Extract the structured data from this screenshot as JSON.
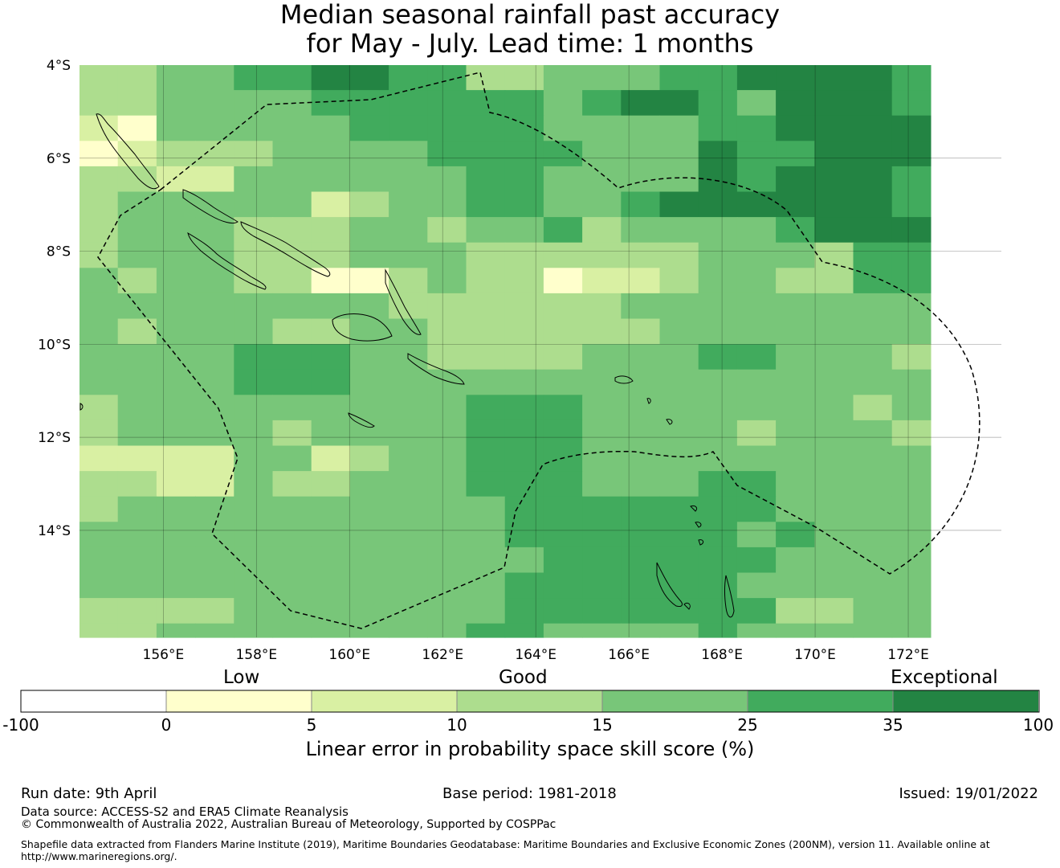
{
  "title": {
    "line1": "Median seasonal rainfall past accuracy",
    "line2": "for May - July. Lead time: 1 months"
  },
  "map": {
    "lat_labels": [
      "4°S",
      "6°S",
      "8°S",
      "10°S",
      "12°S",
      "14°S"
    ],
    "lon_labels": [
      "156°E",
      "158°E",
      "160°E",
      "162°E",
      "164°E",
      "166°E",
      "168°E",
      "170°E",
      "172°E"
    ],
    "lon_range": [
      154.2,
      174.0
    ],
    "lat_range": [
      -16.3,
      -4.0
    ],
    "cell_size_deg": 0.833,
    "grid_class_codes": [
      "3344556655334445566665",
      "3344445555554566546665",
      "2144444555554444556666",
      "1233344445555444655666",
      "3322444444554444656665",
      "3444442344554456666665",
      "3444333443445344445666",
      "3444333444333333444355",
      "4344331134331223443355",
      "4444444433333344444444",
      "4344433443333334444444",
      "4444555443333444554443",
      "4444555444444444444444",
      "3444444444555444444434",
      "3444434444555444434443",
      "2222442344555444444444",
      "3322433444555444554444",
      "3444444444455555554444",
      "4444444444455555545444",
      "4444444444445555554444",
      "4444444444455555544444",
      "3333444444455555553344",
      "3344444444554444544444"
    ],
    "class_colors": [
      "#ffffff",
      "#ffffcc",
      "#d9f0a3",
      "#addd8e",
      "#78c679",
      "#41ab5d",
      "#238443"
    ]
  },
  "colorbar": {
    "category_labels": [
      "Low",
      "Good",
      "Exceptional"
    ],
    "ticks": [
      "-100",
      "0",
      "5",
      "10",
      "15",
      "25",
      "35",
      "100"
    ],
    "colors": [
      "#ffffff",
      "#ffffcc",
      "#d9f0a3",
      "#addd8e",
      "#78c679",
      "#41ab5d",
      "#238443"
    ],
    "title": "Linear error in probability space skill score (%)"
  },
  "footer": {
    "run_date": "Run date: 9th April",
    "base_period": "Base period: 1981-2018",
    "issued": "Issued: 19/01/2022",
    "data_source": "Data source: ACCESS-S2 and ERA5 Climate Reanalysis",
    "copyright": "© Commonwealth of Australia 2022, Australian Bureau of Meteorology, Supported by COSPPac",
    "shapefile": "Shapefile data extracted from Flanders Marine Institute (2019), Maritime Boundaries Geodatabase: Maritime Boundaries and Exclusive Economic Zones (200NM), version 11. Available online at",
    "url": "http://www.marineregions.org/."
  }
}
